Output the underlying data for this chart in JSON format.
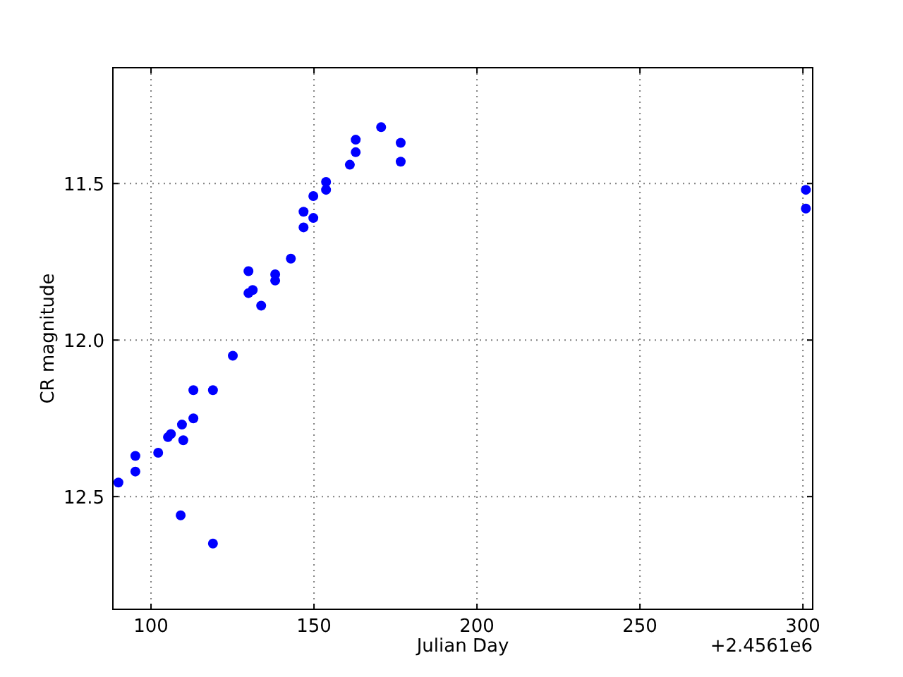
{
  "chart_data": {
    "type": "scatter",
    "xlabel": "Julian Day",
    "ylabel": "CR magnitude",
    "annotations": [
      "+2.4561e6"
    ],
    "x": [
      90.0,
      95.2,
      95.2,
      102.2,
      105.2,
      106.1,
      109.5,
      109.9,
      113.0,
      113.0,
      119.0,
      109.1,
      119.0,
      125.1,
      129.9,
      129.9,
      131.2,
      133.8,
      138.1,
      138.1,
      142.9,
      146.8,
      146.8,
      149.8,
      149.8,
      153.7,
      153.7,
      161.0,
      162.8,
      162.8,
      170.6,
      176.6,
      176.6,
      300.9,
      300.9
    ],
    "series": [
      {
        "color": "#0000ff",
        "values": [
          12.455,
          12.37,
          12.42,
          12.36,
          12.31,
          12.3,
          12.27,
          12.32,
          12.25,
          12.16,
          12.16,
          12.56,
          12.65,
          12.05,
          11.78,
          11.85,
          11.84,
          11.89,
          11.79,
          11.81,
          11.74,
          11.59,
          11.64,
          11.54,
          11.61,
          11.495,
          11.52,
          11.44,
          11.36,
          11.4,
          11.32,
          11.37,
          11.43,
          11.52,
          11.58
        ]
      }
    ],
    "xlim": [
      88.3,
      303
    ],
    "ylim": [
      12.86,
      11.13
    ],
    "xticks": [
      100,
      150,
      200,
      250,
      300
    ],
    "yticks": [
      {
        "value": 11.5,
        "label": "11.5"
      },
      {
        "value": 12,
        "label": "12.0"
      },
      {
        "value": 12.5,
        "label": "12.5"
      }
    ],
    "grid": true,
    "marker": "circle",
    "line_style": "dotted"
  }
}
